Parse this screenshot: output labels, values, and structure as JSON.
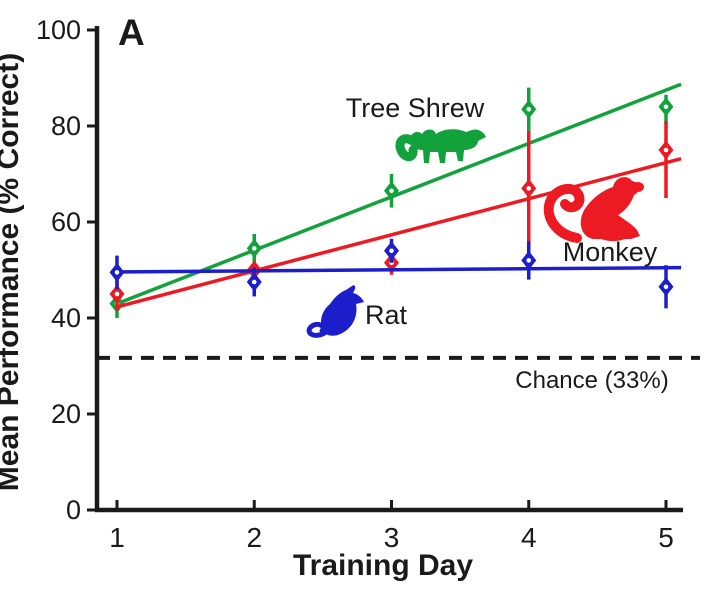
{
  "panel_label": "A",
  "axes": {
    "ylabel": "Mean Performance (% Correct)",
    "xlabel": "Training Day",
    "yticks": [
      0,
      20,
      40,
      60,
      80,
      100
    ],
    "xticks": [
      1,
      2,
      3,
      4,
      5
    ],
    "ylim": [
      0,
      100
    ],
    "grid": false
  },
  "chance": {
    "label": "Chance (33%)",
    "value": 33,
    "plot_value": 31.7,
    "line_style": "dashed",
    "color": "#1a1a1a"
  },
  "colors": {
    "tree_shrew": "#12A23C",
    "monkey": "#EC1B23",
    "rat": "#1C1ECB",
    "axis": "#1a1a1a"
  },
  "icons": [
    "tree-shrew-icon",
    "monkey-icon",
    "rat-icon"
  ],
  "chart_data": {
    "type": "scatter",
    "title": "",
    "xlabel": "Training Day",
    "ylabel": "Mean Performance (% Correct)",
    "x": [
      1,
      2,
      3,
      4,
      5
    ],
    "legend_position": "inline-annotations",
    "series": [
      {
        "name": "tree_shrew",
        "label": "Tree Shrew",
        "color": "#12A23C",
        "values": [
          43,
          54.5,
          66.5,
          83.5,
          84
        ],
        "err_lo": [
          40,
          51.5,
          63,
          79,
          80.5
        ],
        "err_hi": [
          46,
          57.5,
          70,
          88,
          86.5
        ],
        "trend": {
          "day_start": 1,
          "v_start": 43.0,
          "day_end": 5.11,
          "v_end": 88.7
        }
      },
      {
        "name": "monkey",
        "label": "Monkey",
        "color": "#EC1B23",
        "values": [
          45,
          50,
          51.5,
          67,
          75
        ],
        "err_lo": [
          41.5,
          48.5,
          49,
          55.5,
          65
        ],
        "err_hi": [
          48.5,
          51.5,
          54,
          79,
          81
        ],
        "trend": {
          "day_start": 1,
          "v_start": 42.3,
          "day_end": 5.11,
          "v_end": 73.2
        }
      },
      {
        "name": "rat",
        "label": "Rat",
        "color": "#1C1ECB",
        "values": [
          49.5,
          47.5,
          54,
          52,
          46.5
        ],
        "err_lo": [
          46,
          44.5,
          51.5,
          48,
          42
        ],
        "err_hi": [
          53,
          50.5,
          56.5,
          56,
          51
        ],
        "trend": {
          "day_start": 1,
          "v_start": 49.6,
          "day_end": 5.11,
          "v_end": 50.5
        }
      }
    ]
  }
}
